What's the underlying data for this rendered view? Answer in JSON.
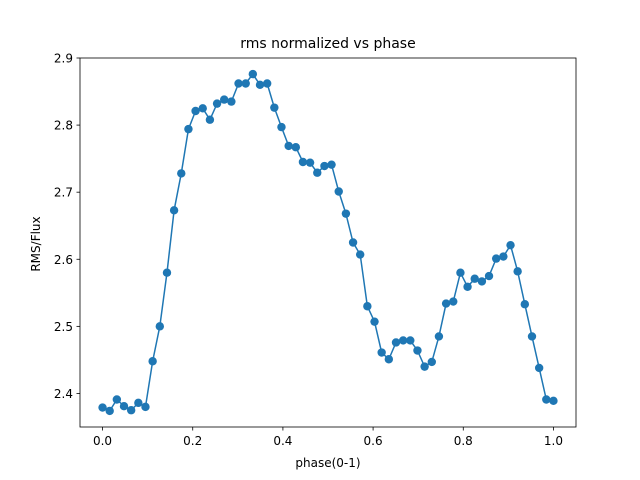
{
  "chart_data": {
    "type": "line",
    "title": "rms normalized vs phase",
    "xlabel": "phase(0-1)",
    "ylabel": "RMS/Flux",
    "xlim": [
      -0.05,
      1.05
    ],
    "ylim": [
      2.35,
      2.9
    ],
    "xticks": [
      0.0,
      0.2,
      0.4,
      0.6,
      0.8,
      1.0
    ],
    "xtick_labels": [
      "0.0",
      "0.2",
      "0.4",
      "0.6",
      "0.8",
      "1.0"
    ],
    "yticks": [
      2.4,
      2.5,
      2.6,
      2.7,
      2.8,
      2.9
    ],
    "ytick_labels": [
      "2.4",
      "2.5",
      "2.6",
      "2.7",
      "2.8",
      "2.9"
    ],
    "grid": false,
    "marker": "circle",
    "color": "#1f77b4",
    "series": [
      {
        "x": [
          0.0,
          0.0159,
          0.0317,
          0.0476,
          0.0635,
          0.0794,
          0.0952,
          0.1111,
          0.127,
          0.1429,
          0.1587,
          0.1746,
          0.1905,
          0.2063,
          0.2222,
          0.2381,
          0.254,
          0.2698,
          0.2857,
          0.3016,
          0.3175,
          0.3333,
          0.3492,
          0.3651,
          0.381,
          0.3968,
          0.4127,
          0.4286,
          0.4444,
          0.4603,
          0.4762,
          0.4921,
          0.5079,
          0.5238,
          0.5397,
          0.5556,
          0.5714,
          0.5873,
          0.6032,
          0.619,
          0.6349,
          0.6508,
          0.6667,
          0.6825,
          0.6984,
          0.7143,
          0.7302,
          0.746,
          0.7619,
          0.7778,
          0.7937,
          0.8095,
          0.8254,
          0.8413,
          0.8571,
          0.873,
          0.8889,
          0.9048,
          0.9206,
          0.9365,
          0.9524,
          0.9683,
          0.9841,
          1.0
        ],
        "y": [
          2.379,
          2.374,
          2.391,
          2.381,
          2.375,
          2.386,
          2.38,
          2.448,
          2.5,
          2.58,
          2.673,
          2.728,
          2.794,
          2.821,
          2.825,
          2.808,
          2.832,
          2.838,
          2.835,
          2.862,
          2.862,
          2.876,
          2.86,
          2.862,
          2.826,
          2.797,
          2.769,
          2.767,
          2.745,
          2.744,
          2.729,
          2.739,
          2.741,
          2.701,
          2.668,
          2.625,
          2.607,
          2.53,
          2.507,
          2.461,
          2.451,
          2.476,
          2.479,
          2.479,
          2.464,
          2.44,
          2.447,
          2.485,
          2.534,
          2.537,
          2.58,
          2.559,
          2.571,
          2.567,
          2.575,
          2.601,
          2.604,
          2.621,
          2.582,
          2.533,
          2.485,
          2.438,
          2.391,
          2.389
        ]
      }
    ]
  }
}
